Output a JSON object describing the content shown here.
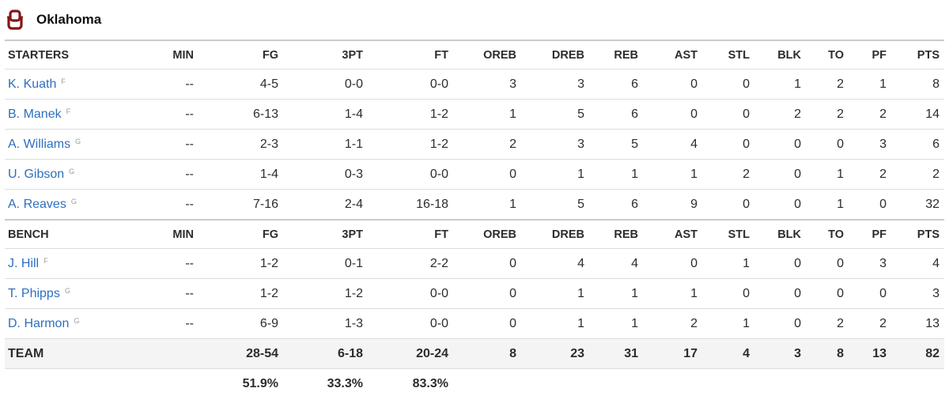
{
  "team": {
    "name": "Oklahoma",
    "logo_icon": "oklahoma-ou-logo-icon",
    "logo_color": "#841617"
  },
  "columns": [
    "MIN",
    "FG",
    "3PT",
    "FT",
    "OREB",
    "DREB",
    "REB",
    "AST",
    "STL",
    "BLK",
    "TO",
    "PF",
    "PTS"
  ],
  "starters": {
    "label": "STARTERS",
    "players": [
      {
        "name": "K. Kuath",
        "pos": "F",
        "stats": [
          "--",
          "4-5",
          "0-0",
          "0-0",
          "3",
          "3",
          "6",
          "0",
          "0",
          "1",
          "2",
          "1",
          "8"
        ]
      },
      {
        "name": "B. Manek",
        "pos": "F",
        "stats": [
          "--",
          "6-13",
          "1-4",
          "1-2",
          "1",
          "5",
          "6",
          "0",
          "0",
          "2",
          "2",
          "2",
          "14"
        ]
      },
      {
        "name": "A. Williams",
        "pos": "G",
        "stats": [
          "--",
          "2-3",
          "1-1",
          "1-2",
          "2",
          "3",
          "5",
          "4",
          "0",
          "0",
          "0",
          "3",
          "6"
        ]
      },
      {
        "name": "U. Gibson",
        "pos": "G",
        "stats": [
          "--",
          "1-4",
          "0-3",
          "0-0",
          "0",
          "1",
          "1",
          "1",
          "2",
          "0",
          "1",
          "2",
          "2"
        ]
      },
      {
        "name": "A. Reaves",
        "pos": "G",
        "stats": [
          "--",
          "7-16",
          "2-4",
          "16-18",
          "1",
          "5",
          "6",
          "9",
          "0",
          "0",
          "1",
          "0",
          "32"
        ]
      }
    ]
  },
  "bench": {
    "label": "BENCH",
    "players": [
      {
        "name": "J. Hill",
        "pos": "F",
        "stats": [
          "--",
          "1-2",
          "0-1",
          "2-2",
          "0",
          "4",
          "4",
          "0",
          "1",
          "0",
          "0",
          "3",
          "4"
        ]
      },
      {
        "name": "T. Phipps",
        "pos": "G",
        "stats": [
          "--",
          "1-2",
          "1-2",
          "0-0",
          "0",
          "1",
          "1",
          "1",
          "0",
          "0",
          "0",
          "0",
          "3"
        ]
      },
      {
        "name": "D. Harmon",
        "pos": "G",
        "stats": [
          "--",
          "6-9",
          "1-3",
          "0-0",
          "0",
          "1",
          "1",
          "2",
          "1",
          "0",
          "2",
          "2",
          "13"
        ]
      }
    ]
  },
  "totals": {
    "label": "TEAM",
    "stats": [
      "",
      "28-54",
      "6-18",
      "20-24",
      "8",
      "23",
      "31",
      "17",
      "4",
      "3",
      "8",
      "13",
      "82"
    ],
    "percentages": [
      "",
      "51.9%",
      "33.3%",
      "83.3%",
      "",
      "",
      "",
      "",
      "",
      "",
      "",
      "",
      ""
    ]
  }
}
